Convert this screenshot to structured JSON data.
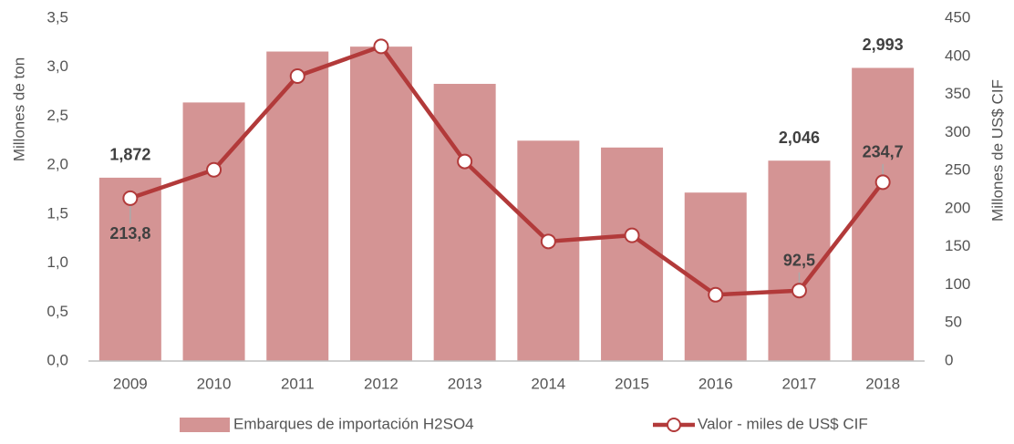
{
  "chart_data": {
    "type": "bar",
    "categories": [
      "2009",
      "2010",
      "2011",
      "2012",
      "2013",
      "2014",
      "2015",
      "2016",
      "2017",
      "2018"
    ],
    "series": [
      {
        "name": "Embarques de importación H2SO4",
        "type": "bar",
        "color": "#d49494",
        "values": [
          1.872,
          2.64,
          3.16,
          3.21,
          2.83,
          2.25,
          2.18,
          1.72,
          2.046,
          2.993
        ],
        "value_labels": [
          "1,872",
          null,
          null,
          null,
          null,
          null,
          null,
          null,
          "2,046",
          "2,993"
        ]
      },
      {
        "name": "Valor - miles de US$ CIF",
        "type": "line",
        "axis": "y2",
        "color": "#b23a3a",
        "values": [
          213.8,
          251,
          374,
          413,
          262,
          157,
          165,
          87,
          92.5,
          234.7
        ],
        "value_labels": [
          "213,8",
          null,
          null,
          null,
          null,
          null,
          null,
          null,
          "92,5",
          "234,7"
        ]
      }
    ],
    "ylabel": "Millones de ton",
    "y2label": "Millones de US$ CIF",
    "ylim": [
      0,
      3.5
    ],
    "yticks": [
      {
        "value": 0,
        "label": "0,0"
      },
      {
        "value": 0.5,
        "label": "0,5"
      },
      {
        "value": 1,
        "label": "1,0"
      },
      {
        "value": 1.5,
        "label": "1,5"
      },
      {
        "value": 2,
        "label": "2,0"
      },
      {
        "value": 2.5,
        "label": "2,5"
      },
      {
        "value": 3,
        "label": "3,0"
      },
      {
        "value": 3.5,
        "label": "3,5"
      }
    ],
    "y2lim": [
      0,
      450
    ],
    "y2ticks": [
      0,
      50,
      100,
      150,
      200,
      250,
      300,
      350,
      400,
      450
    ],
    "grid": false,
    "legend": "bottom"
  }
}
